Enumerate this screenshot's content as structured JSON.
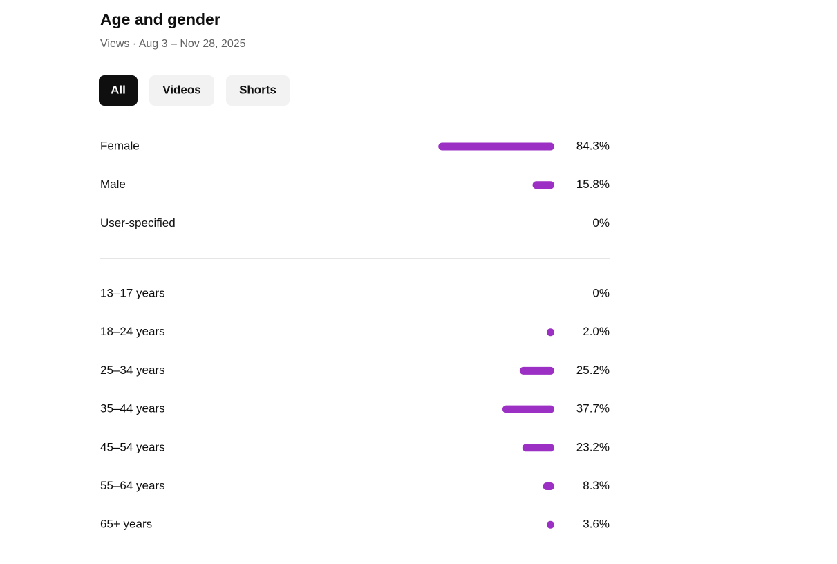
{
  "header": {
    "title": "Age and gender",
    "subtitle": "Views · Aug 3 – Nov 28, 2025"
  },
  "tabs": [
    {
      "label": "All",
      "selected": true
    },
    {
      "label": "Videos",
      "selected": false
    },
    {
      "label": "Shorts",
      "selected": false
    }
  ],
  "bar_color": "#9c2fc4",
  "gender": [
    {
      "label": "Female",
      "value": 84.3,
      "value_label": "84.3%"
    },
    {
      "label": "Male",
      "value": 15.8,
      "value_label": "15.8%"
    },
    {
      "label": "User-specified",
      "value": 0,
      "value_label": "0%"
    }
  ],
  "age": [
    {
      "label": "13–17 years",
      "value": 0,
      "value_label": "0%"
    },
    {
      "label": "18–24 years",
      "value": 2.0,
      "value_label": "2.0%"
    },
    {
      "label": "25–34 years",
      "value": 25.2,
      "value_label": "25.2%"
    },
    {
      "label": "35–44 years",
      "value": 37.7,
      "value_label": "37.7%"
    },
    {
      "label": "45–54 years",
      "value": 23.2,
      "value_label": "23.2%"
    },
    {
      "label": "55–64 years",
      "value": 8.3,
      "value_label": "8.3%"
    },
    {
      "label": "65+ years",
      "value": 3.6,
      "value_label": "3.6%"
    }
  ]
}
